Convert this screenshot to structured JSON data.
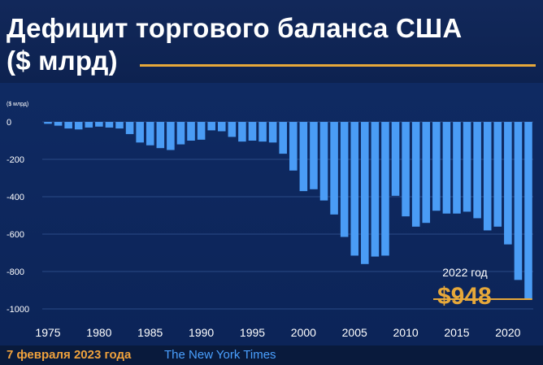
{
  "header": {
    "title_line1": "Дефицит торгового баланса США",
    "title_line2": "($ млрд)"
  },
  "footer": {
    "date": "7 февраля 2023 года",
    "source": "The New York Times"
  },
  "colors": {
    "background": "#0b1f45",
    "bar": "#4a9cf5",
    "accent": "#e6a83a",
    "gridline": "#2a4a86",
    "text": "#ffffff"
  },
  "chart_data": {
    "type": "bar",
    "unit_label": "($ млрд)",
    "ylim": [
      -1000,
      0
    ],
    "yticks": [
      0,
      -200,
      -400,
      -600,
      -800,
      -1000
    ],
    "xtick_labels": [
      "1975",
      "1980",
      "1985",
      "1990",
      "1995",
      "2000",
      "2005",
      "2010",
      "2015",
      "2020"
    ],
    "grid": true,
    "categories": [
      1975,
      1976,
      1977,
      1978,
      1979,
      1980,
      1981,
      1982,
      1983,
      1984,
      1985,
      1986,
      1987,
      1988,
      1989,
      1990,
      1991,
      1992,
      1993,
      1994,
      1995,
      1996,
      1997,
      1998,
      1999,
      2000,
      2001,
      2002,
      2003,
      2004,
      2005,
      2006,
      2007,
      2008,
      2009,
      2010,
      2011,
      2012,
      2013,
      2014,
      2015,
      2016,
      2017,
      2018,
      2019,
      2020,
      2021,
      2022
    ],
    "values": [
      -10,
      -20,
      -35,
      -40,
      -30,
      -25,
      -30,
      -35,
      -65,
      -110,
      -125,
      -140,
      -150,
      -120,
      -100,
      -95,
      -45,
      -50,
      -80,
      -105,
      -100,
      -105,
      -110,
      -170,
      -260,
      -370,
      -360,
      -420,
      -495,
      -615,
      -715,
      -760,
      -720,
      -715,
      -395,
      -505,
      -560,
      -540,
      -475,
      -490,
      -490,
      -480,
      -515,
      -580,
      -560,
      -655,
      -845,
      -948
    ],
    "annotation": {
      "year_label": "2022 год",
      "value_label": "$948"
    }
  }
}
